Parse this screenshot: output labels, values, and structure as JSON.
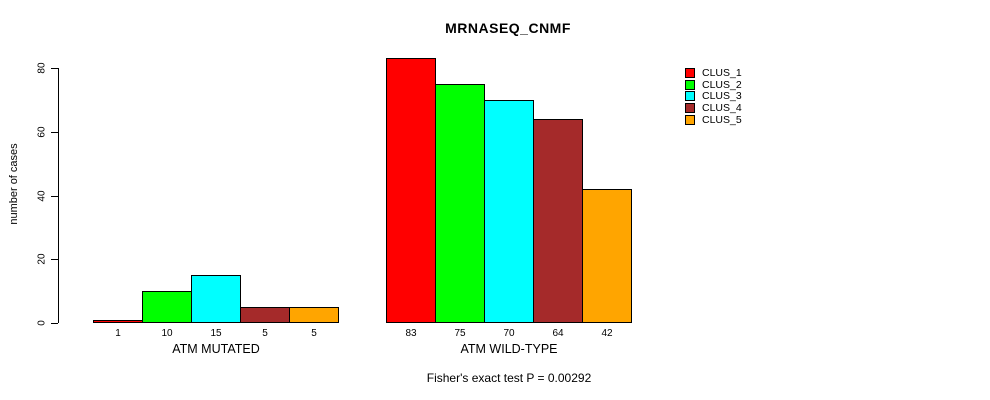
{
  "title": "MRNASEQ_CNMF",
  "footer": "Fisher's exact test P = 0.00292",
  "chart_data": {
    "type": "bar",
    "title": "MRNASEQ_CNMF",
    "ylabel": "number of cases",
    "xlabel": "",
    "ylim": [
      0,
      80
    ],
    "yticks": [
      0,
      20,
      40,
      60,
      80
    ],
    "grid": false,
    "legend_position": "top-right",
    "series_names": [
      "CLUS_1",
      "CLUS_2",
      "CLUS_3",
      "CLUS_4",
      "CLUS_5"
    ],
    "colors": [
      "#FF0000",
      "#00FF00",
      "#00FFFF",
      "#A52A2A",
      "#FFA500"
    ],
    "groups": [
      {
        "label": "ATM MUTATED",
        "values": [
          1,
          10,
          15,
          5,
          5
        ]
      },
      {
        "label": "ATM WILD-TYPE",
        "values": [
          83,
          75,
          70,
          64,
          42
        ]
      }
    ],
    "bar_value_labels_shown": true,
    "annotation": "Fisher's exact test P = 0.00292"
  }
}
